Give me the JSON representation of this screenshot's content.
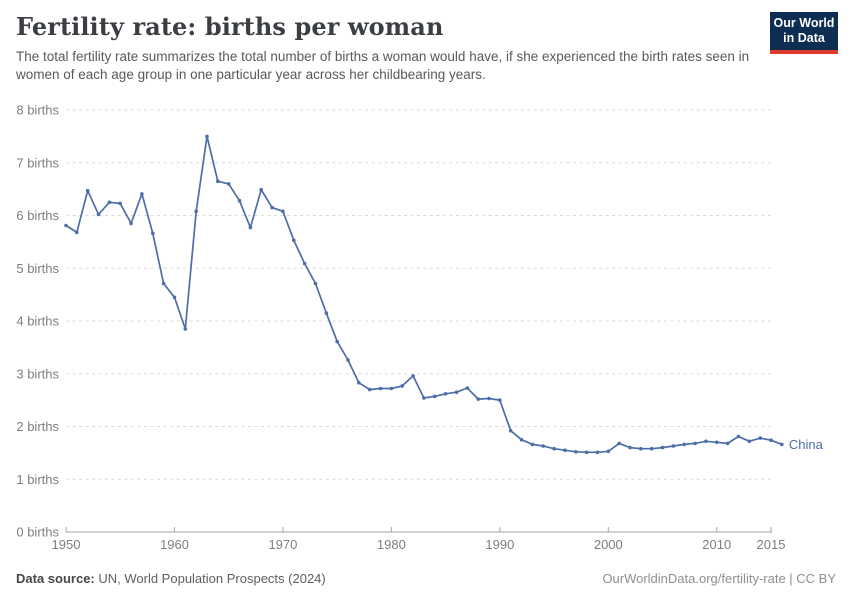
{
  "header": {
    "title": "Fertility rate: births per woman",
    "subtitle": "The total fertility rate summarizes the total number of births a woman would have, if she experienced the birth rates seen in women of each age group in one particular year across her childbearing years.",
    "logo": {
      "line1": "Our World",
      "line2": "in Data"
    }
  },
  "chart_data": {
    "type": "line",
    "title": "Fertility rate: births per woman",
    "xlabel": "",
    "ylabel": "births per woman",
    "x": [
      1950,
      1951,
      1952,
      1953,
      1954,
      1955,
      1956,
      1957,
      1958,
      1959,
      1960,
      1961,
      1962,
      1963,
      1964,
      1965,
      1966,
      1967,
      1968,
      1969,
      1970,
      1971,
      1972,
      1973,
      1974,
      1975,
      1976,
      1977,
      1978,
      1979,
      1980,
      1981,
      1982,
      1983,
      1984,
      1985,
      1986,
      1987,
      1988,
      1989,
      1990,
      1991,
      1992,
      1993,
      1994,
      1995,
      1996,
      1997,
      1998,
      1999,
      2000,
      2001,
      2002,
      2003,
      2004,
      2005,
      2006,
      2007,
      2008,
      2009,
      2010,
      2011,
      2012,
      2013,
      2014,
      2015,
      2016
    ],
    "series": [
      {
        "name": "China",
        "color": "#4C6EA8",
        "values": [
          5.81,
          5.68,
          6.47,
          6.02,
          6.25,
          6.23,
          5.85,
          6.41,
          5.66,
          4.71,
          4.45,
          3.85,
          6.08,
          7.5,
          6.65,
          6.6,
          6.28,
          5.77,
          6.49,
          6.15,
          6.08,
          5.53,
          5.09,
          4.71,
          4.15,
          3.61,
          3.26,
          2.83,
          2.7,
          2.72,
          2.72,
          2.77,
          2.96,
          2.54,
          2.57,
          2.62,
          2.65,
          2.73,
          2.52,
          2.53,
          2.5,
          1.92,
          1.75,
          1.66,
          1.63,
          1.58,
          1.55,
          1.52,
          1.51,
          1.51,
          1.53,
          1.68,
          1.6,
          1.58,
          1.58,
          1.6,
          1.63,
          1.66,
          1.68,
          1.72,
          1.7,
          1.68,
          1.81,
          1.72,
          1.78,
          1.74,
          1.66
        ]
      }
    ],
    "ylim": [
      0,
      8
    ],
    "yticks": [
      0,
      1,
      2,
      3,
      4,
      5,
      6,
      7,
      8
    ],
    "ytick_suffix": " births",
    "xticks": [
      1950,
      1960,
      1970,
      1980,
      1990,
      2000,
      2010,
      2015
    ],
    "grid": "horizontal-dashed",
    "legend": "line-end-label"
  },
  "footer": {
    "source_label": "Data source:",
    "source_text": " UN, World Population Prospects (2024)",
    "credit": "OurWorldinData.org/fertility-rate | CC BY"
  },
  "colors": {
    "line": "#4C6EA8",
    "tick_label": "#7e7e7e",
    "gridline": "#dadada",
    "axis": "#a6a6a6",
    "logo_bg": "#0d2d52",
    "logo_accent": "#dc3b2e"
  }
}
